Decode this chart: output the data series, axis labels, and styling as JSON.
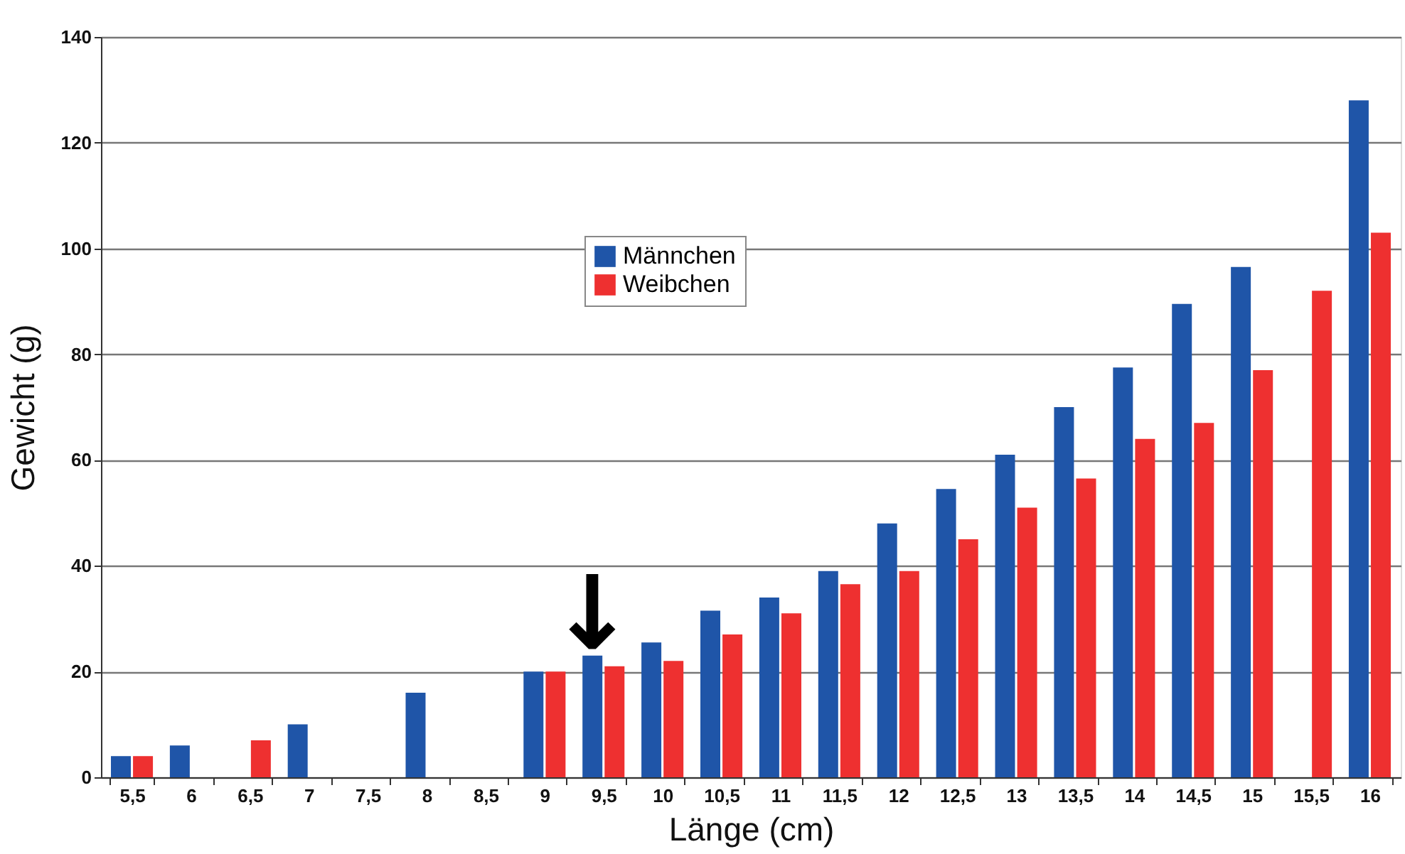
{
  "chart_data": {
    "type": "bar",
    "xlabel": "Länge (cm)",
    "ylabel": "Gewicht (g)",
    "categories": [
      "5,5",
      "6",
      "6,5",
      "7",
      "7,5",
      "8",
      "8,5",
      "9",
      "9,5",
      "10",
      "10,5",
      "11",
      "11,5",
      "12",
      "12,5",
      "13",
      "13,5",
      "14",
      "14,5",
      "15",
      "15,5",
      "16"
    ],
    "series": [
      {
        "name": "Männchen",
        "color": "#1f55a8",
        "values": [
          4,
          6,
          null,
          10,
          null,
          16,
          null,
          20,
          23,
          25.5,
          31.5,
          34,
          39,
          48,
          54.5,
          61,
          70,
          77.5,
          89.5,
          96.5,
          null,
          128
        ]
      },
      {
        "name": "Weibchen",
        "color": "#ee3030",
        "values": [
          4,
          null,
          7,
          null,
          null,
          null,
          null,
          20,
          21,
          22,
          27,
          31,
          36.5,
          39,
          45,
          51,
          56.5,
          64,
          67,
          77,
          92,
          103
        ]
      }
    ],
    "annotations": [
      {
        "text": "↓",
        "x": "9,5",
        "y": 23
      }
    ],
    "ylim": [
      0,
      140
    ],
    "yticks": [
      0,
      20,
      40,
      60,
      80,
      100,
      120,
      140
    ],
    "grid": "y",
    "legend": "top"
  }
}
